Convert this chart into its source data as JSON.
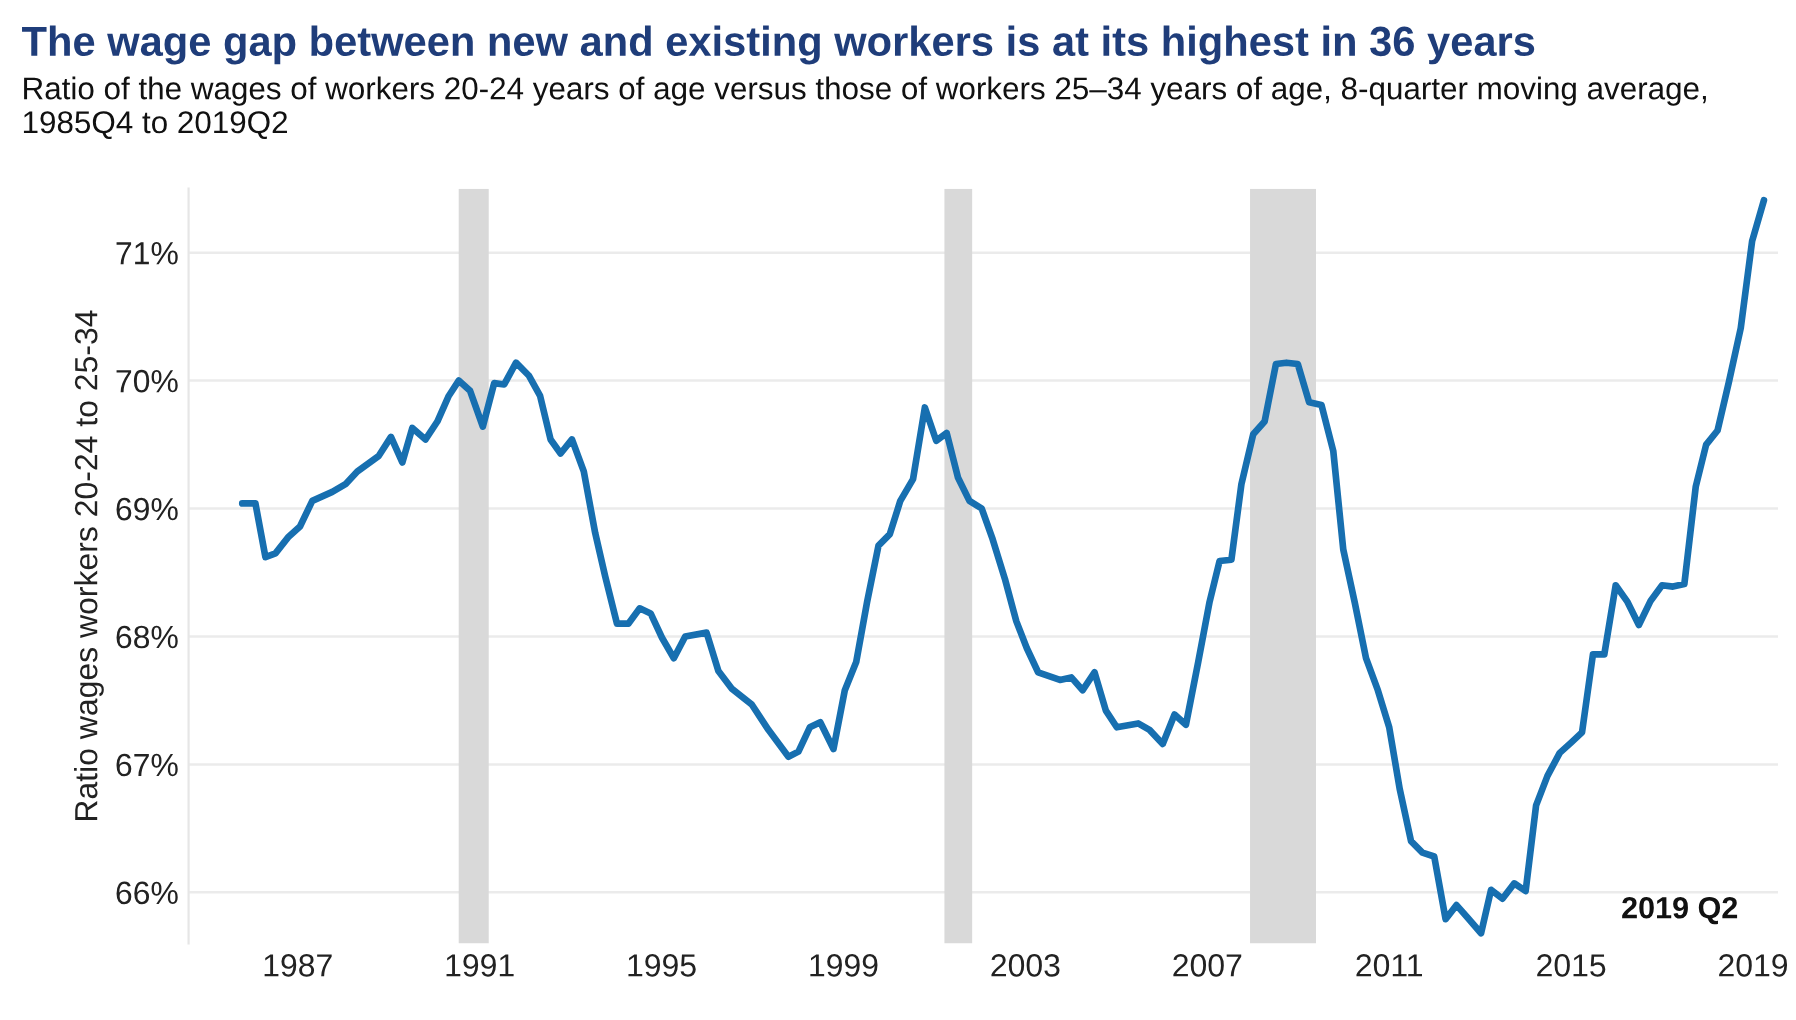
{
  "chart_data": {
    "type": "line",
    "title": "The wage gap between new and existing workers is at its highest in 36 years",
    "subtitle": "Ratio of the wages of workers 20-24 years of age versus those of workers 25–34 years of age, 8-quarter moving average, 1985Q4 to 2019Q2",
    "ylabel": "Ratio wages workers 20-24 to 25-34",
    "annotations": [
      "2019 Q2"
    ],
    "series": [
      {
        "color": "#176fb0",
        "x": [
          1985.78,
          1986.07,
          1986.29,
          1986.51,
          1986.8,
          1987.05,
          1987.32,
          1987.76,
          1988.05,
          1988.31,
          1988.78,
          1989.05,
          1989.3,
          1989.52,
          1989.81,
          1990.07,
          1990.32,
          1990.54,
          1990.79,
          1991.07,
          1991.32,
          1991.54,
          1991.8,
          1992.08,
          1992.33,
          1992.56,
          1992.78,
          1993.03,
          1993.29,
          1993.54,
          1993.76,
          1994.02,
          1994.27,
          1994.52,
          1994.76,
          1995.01,
          1995.27,
          1995.52,
          1995.99,
          1996.25,
          1996.55,
          1996.98,
          1997.35,
          1997.79,
          1998.01,
          1998.26,
          1998.49,
          1998.78,
          1999.03,
          1999.28,
          1999.52,
          1999.77,
          2000.02,
          2000.25,
          2000.53,
          2000.79,
          2001.04,
          2001.27,
          2001.52,
          2001.77,
          2002.04,
          2002.28,
          2002.55,
          2002.8,
          2003.03,
          2003.28,
          2003.76,
          2004.01,
          2004.26,
          2004.52,
          2004.77,
          2005.01,
          2005.48,
          2005.73,
          2006.02,
          2006.28,
          2006.53,
          2006.8,
          2007.05,
          2007.27,
          2007.53,
          2007.75,
          2008.01,
          2008.26,
          2008.51,
          2008.74,
          2008.99,
          2009.24,
          2009.51,
          2009.77,
          2009.99,
          2010.24,
          2010.49,
          2010.75,
          2011.0,
          2011.23,
          2011.48,
          2011.73,
          2011.99,
          2012.24,
          2012.48,
          2012.73,
          2013.02,
          2013.24,
          2013.49,
          2013.75,
          2014.0,
          2014.23,
          2014.48,
          2014.75,
          2015.0,
          2015.24,
          2015.48,
          2015.73,
          2015.98,
          2016.24,
          2016.49,
          2016.75,
          2017.0,
          2017.24,
          2017.49,
          2017.74,
          2017.97,
          2018.22,
          2018.47,
          2018.73,
          2018.98,
          2019.24
        ],
        "values": [
          69.04,
          69.04,
          68.62,
          68.65,
          68.78,
          68.86,
          69.06,
          69.13,
          69.19,
          69.29,
          69.41,
          69.56,
          69.36,
          69.63,
          69.54,
          69.68,
          69.88,
          70.0,
          69.92,
          69.64,
          69.98,
          69.97,
          70.14,
          70.04,
          69.88,
          69.54,
          69.43,
          69.54,
          69.29,
          68.81,
          68.47,
          68.1,
          68.1,
          68.22,
          68.18,
          67.99,
          67.83,
          68.0,
          68.03,
          67.73,
          67.59,
          67.47,
          67.27,
          67.06,
          67.1,
          67.29,
          67.33,
          67.12,
          67.58,
          67.8,
          68.27,
          68.71,
          68.8,
          69.06,
          69.23,
          69.79,
          69.53,
          69.59,
          69.24,
          69.06,
          69.0,
          68.76,
          68.45,
          68.12,
          67.91,
          67.72,
          67.66,
          67.68,
          67.58,
          67.72,
          67.42,
          67.29,
          67.32,
          67.27,
          67.16,
          67.39,
          67.31,
          67.8,
          68.27,
          68.59,
          68.6,
          69.19,
          69.58,
          69.68,
          70.13,
          70.14,
          70.13,
          69.83,
          69.81,
          69.45,
          68.68,
          68.27,
          67.83,
          67.58,
          67.29,
          66.81,
          66.4,
          66.31,
          66.28,
          65.79,
          65.9,
          65.8,
          65.68,
          66.02,
          65.95,
          66.07,
          66.01,
          66.68,
          66.91,
          67.09,
          67.17,
          67.25,
          67.86,
          67.86,
          68.4,
          68.27,
          68.09,
          68.28,
          68.4,
          68.39,
          68.41,
          69.17,
          69.5,
          69.61,
          69.99,
          70.41,
          71.09,
          71.41
        ]
      }
    ],
    "xlim": [
      1984.6,
      2019.55
    ],
    "xticks": [
      1987,
      1991,
      1995,
      1999,
      2003,
      2007,
      2011,
      2015,
      2019
    ],
    "ylim": [
      65.6,
      71.5
    ],
    "yticks": [
      {
        "value": 66,
        "label": "66%"
      },
      {
        "value": 67,
        "label": "67%"
      },
      {
        "value": 68,
        "label": "68%"
      },
      {
        "value": 69,
        "label": "69%"
      },
      {
        "value": 70,
        "label": "70%"
      },
      {
        "value": 71,
        "label": "71%"
      }
    ],
    "bands": [
      {
        "axis": "x",
        "from": 1990.54,
        "to": 1991.2,
        "color": "#d9d9d9"
      },
      {
        "axis": "x",
        "from": 2001.22,
        "to": 2001.83,
        "color": "#d9d9d9"
      },
      {
        "axis": "x",
        "from": 2007.94,
        "to": 2009.39,
        "color": "#d9d9d9"
      }
    ],
    "grid": "y",
    "legend": false,
    "line_style": "solid",
    "marker": "none"
  }
}
